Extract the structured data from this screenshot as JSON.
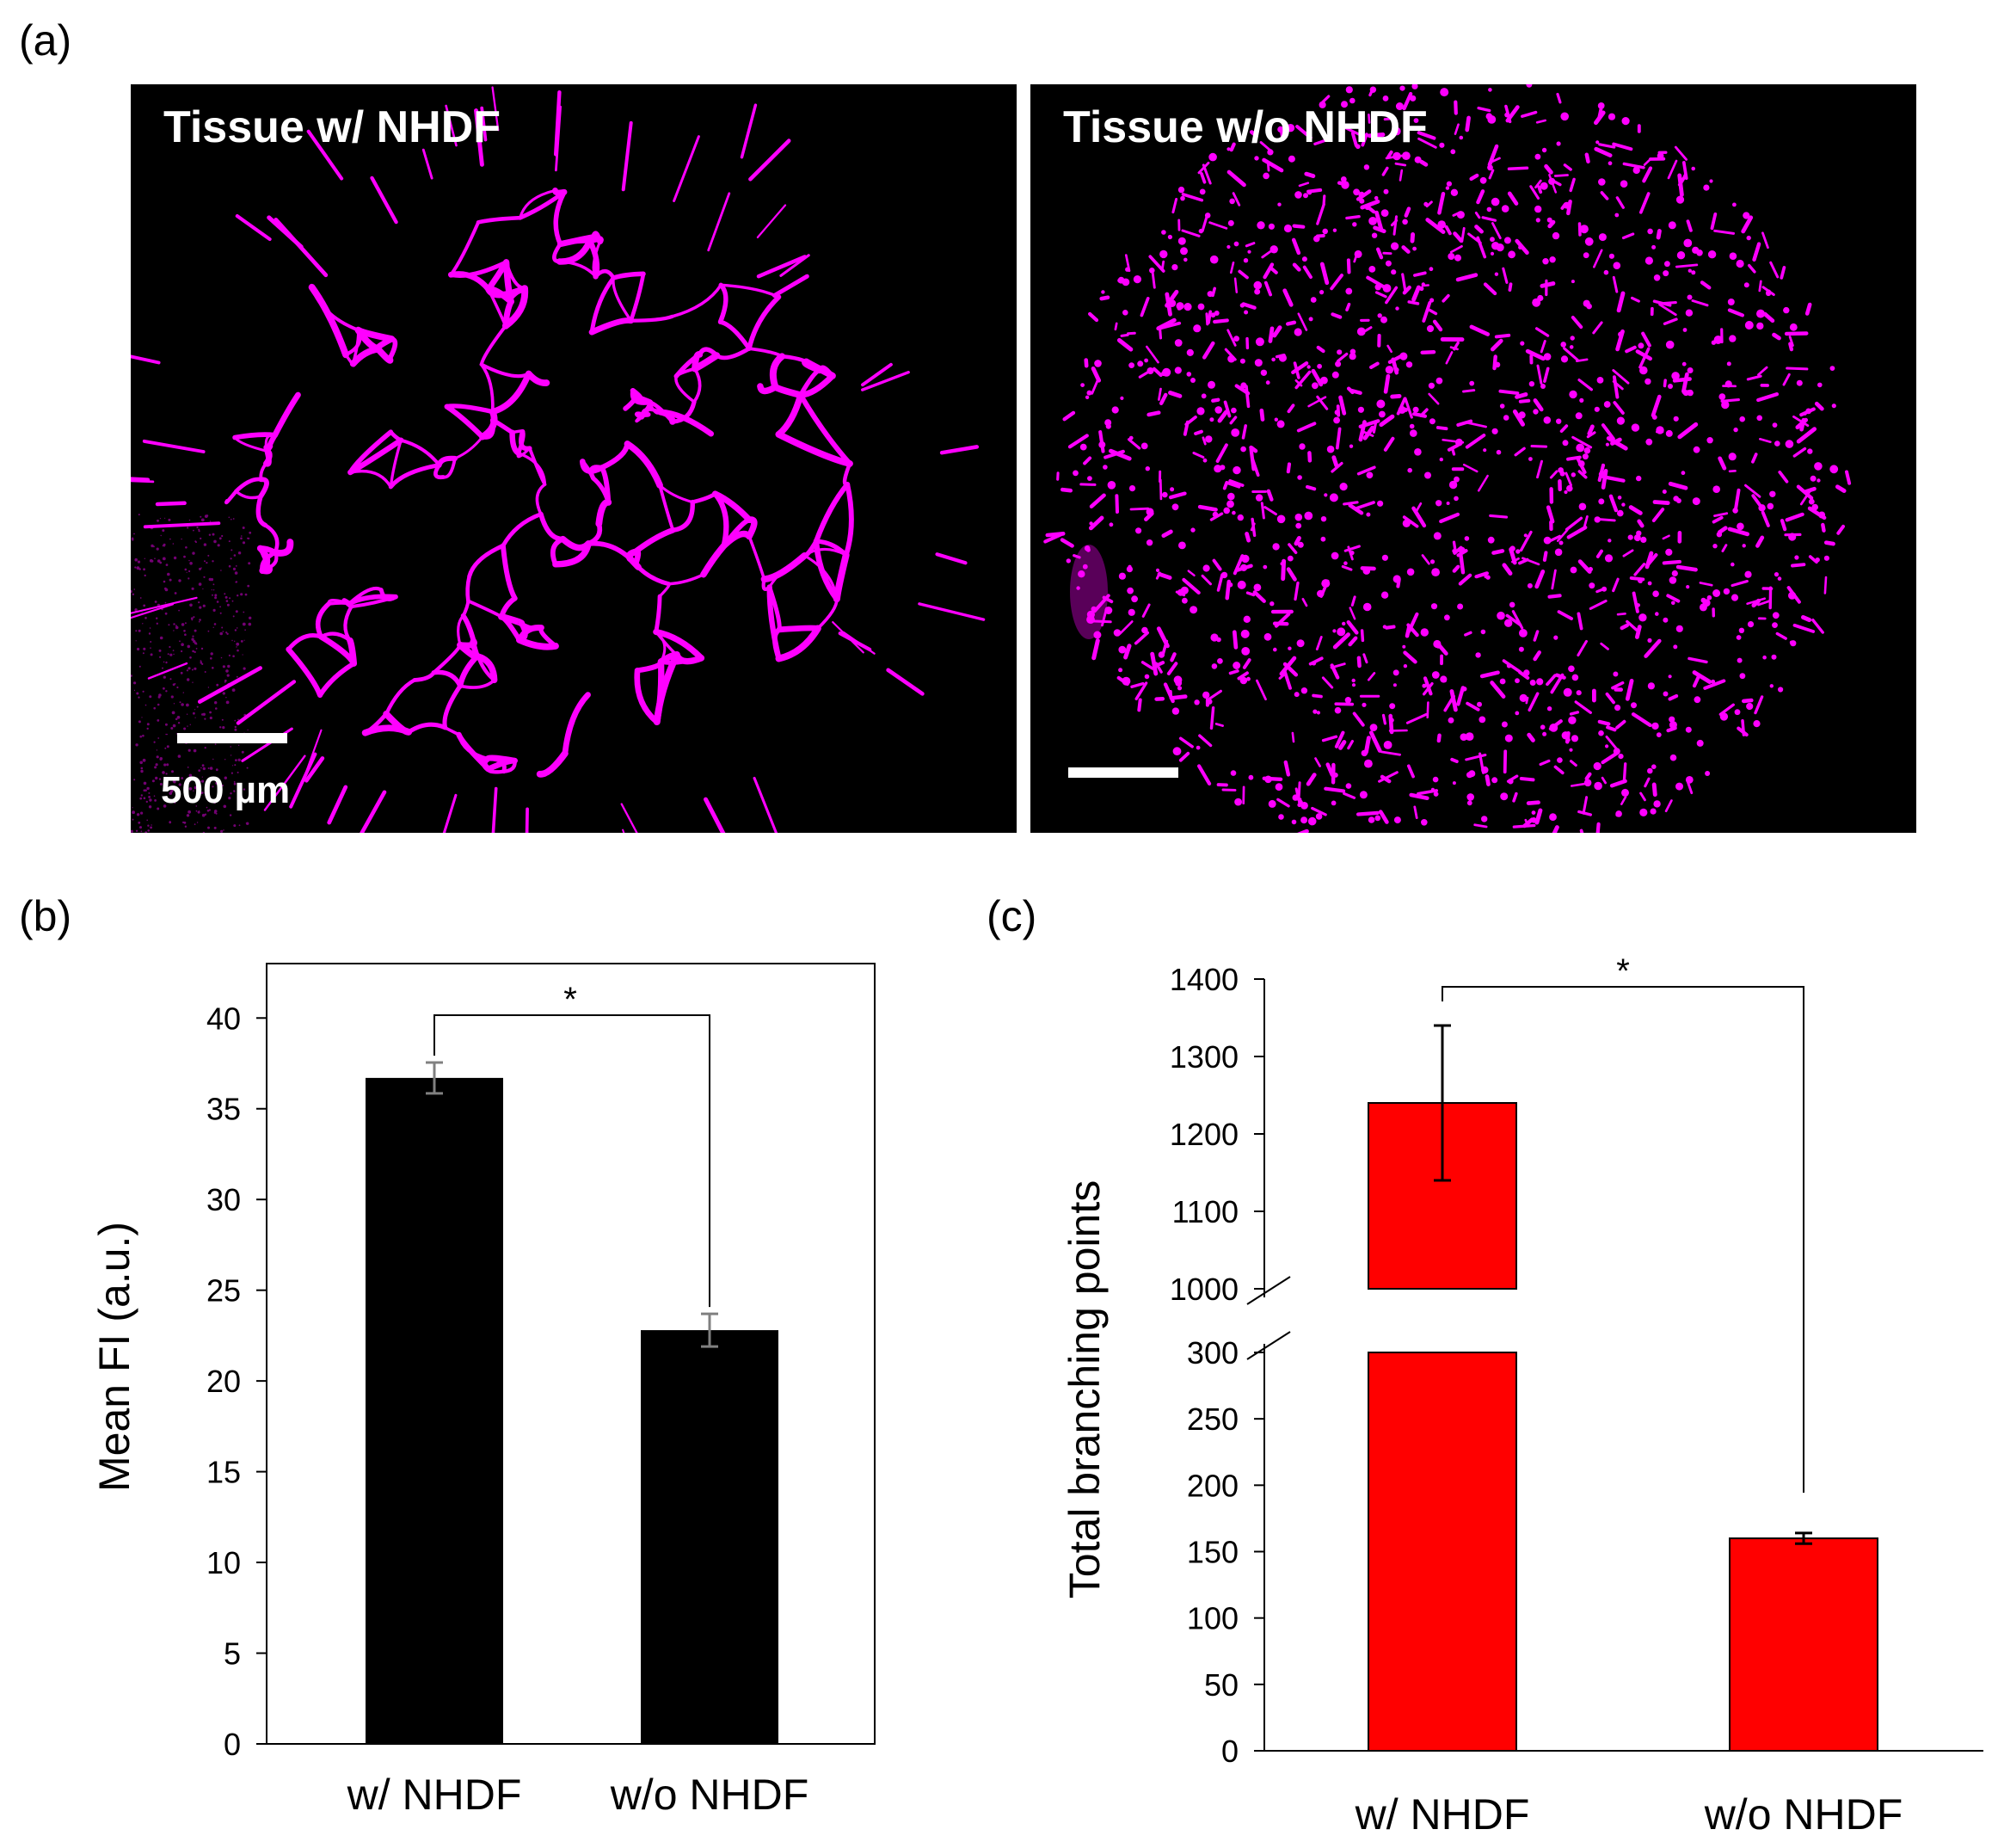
{
  "panels": {
    "a": "(a)",
    "b": "(b)",
    "c": "(c)"
  },
  "images": [
    {
      "label": "Tissue w/ NHDF",
      "scalebar_label": "500 µm",
      "color": "#ff00ff",
      "kind": "branching vascular network"
    },
    {
      "label": "Tissue w/o NHDF",
      "scalebar_label": "",
      "color": "#ff00ff",
      "kind": "scattered fragments in circular well"
    }
  ],
  "chart_data": [
    {
      "type": "bar",
      "categories": [
        "w/ NHDF",
        "w/o NHDF"
      ],
      "values": [
        36.7,
        22.8
      ],
      "errors": [
        0.85,
        0.9
      ],
      "ylabel": "Mean FI (a.u.)",
      "ylim": [
        0,
        40
      ],
      "yticks": [
        0,
        5,
        10,
        15,
        20,
        25,
        30,
        35,
        40
      ],
      "bar_color": "#000000",
      "error_color": "#808080",
      "significance": "*",
      "grid": false
    },
    {
      "type": "bar",
      "categories": [
        "w/ NHDF",
        "w/o NHDF"
      ],
      "values": [
        1240,
        160
      ],
      "errors": [
        100,
        4
      ],
      "ylabel": "Total branching points",
      "axis_break": {
        "lower": [
          0,
          300
        ],
        "upper": [
          1000,
          1400
        ]
      },
      "yticks_lower": [
        0,
        50,
        100,
        150,
        200,
        250,
        300
      ],
      "yticks_upper": [
        1000,
        1100,
        1200,
        1300,
        1400
      ],
      "bar_color": "#ff0000",
      "error_color": "#000000",
      "significance": "*",
      "grid": false
    }
  ]
}
